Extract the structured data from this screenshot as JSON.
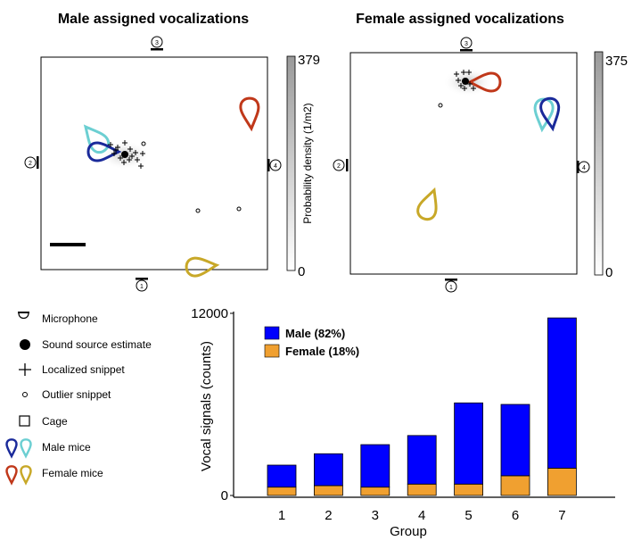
{
  "panels": {
    "male": {
      "title": "Male assigned vocalizations",
      "cbar_max": "379",
      "cbar_min": "0"
    },
    "female": {
      "title": "Female assigned vocalizations",
      "cbar_max": "375",
      "cbar_min": "0"
    },
    "cbar_label": "Probability density (1/m2)",
    "mic_numbers": [
      "1",
      "2",
      "3",
      "4"
    ]
  },
  "legend": {
    "microphone": "Microphone",
    "source": "Sound source estimate",
    "localized": "Localized snippet",
    "outlier": "Outlier snippet",
    "cage": "Cage",
    "male_mice": "Male mice",
    "female_mice": "Female mice"
  },
  "colors": {
    "male": "#0000ff",
    "female": "#f0a030",
    "mouse_dark_blue": "#1a2a9a",
    "mouse_cyan": "#6ccfd2",
    "mouse_red": "#c0381a",
    "mouse_gold": "#c8a828"
  },
  "chart_data": {
    "type": "bar",
    "stacked": true,
    "categories": [
      "1",
      "2",
      "3",
      "4",
      "5",
      "6",
      "7"
    ],
    "series": [
      {
        "name": "Male (82%)",
        "values": [
          1450,
          2100,
          2800,
          3200,
          5350,
          4700,
          9900
        ]
      },
      {
        "name": "Female (18%)",
        "values": [
          550,
          650,
          550,
          750,
          750,
          1300,
          1800
        ]
      }
    ],
    "xlabel": "Group",
    "ylabel": "Vocal signals (counts)",
    "ylim": [
      0,
      12000
    ],
    "yticks": [
      "0",
      "12000"
    ],
    "legend_position": "top-left"
  }
}
